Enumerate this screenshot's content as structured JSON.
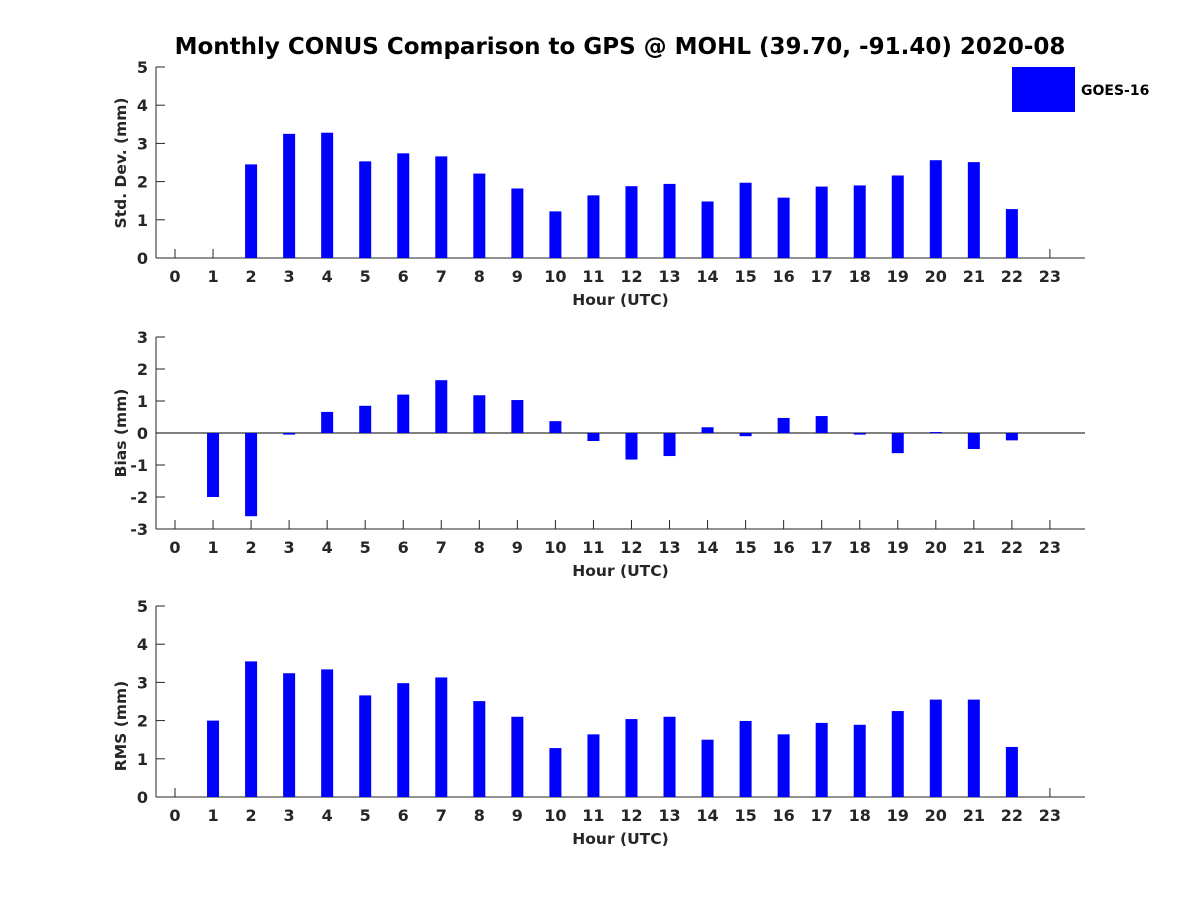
{
  "chart_data": {
    "title": "Monthly CONUS Comparison to GPS @ MOHL (39.70, -91.40) 2020-08",
    "legend": {
      "label": "GOES-16",
      "color": "#0000ff",
      "position": "top-right"
    },
    "panels": [
      {
        "type": "bar",
        "ylabel": "Std. Dev. (mm)",
        "xlabel": "Hour (UTC)",
        "ylim": [
          0,
          5
        ],
        "yticks": [
          "0",
          "1",
          "2",
          "3",
          "4",
          "5"
        ],
        "categories": [
          "0",
          "1",
          "2",
          "3",
          "4",
          "5",
          "6",
          "7",
          "8",
          "9",
          "10",
          "11",
          "12",
          "13",
          "14",
          "15",
          "16",
          "17",
          "18",
          "19",
          "20",
          "21",
          "22",
          "23"
        ],
        "values": [
          null,
          null,
          2.45,
          3.25,
          3.28,
          2.53,
          2.74,
          2.66,
          2.21,
          1.82,
          1.22,
          1.64,
          1.88,
          1.94,
          1.48,
          1.97,
          1.58,
          1.87,
          1.9,
          2.16,
          2.56,
          2.51,
          1.28,
          null
        ]
      },
      {
        "type": "bar",
        "ylabel": "Bias (mm)",
        "xlabel": "Hour (UTC)",
        "ylim": [
          -3,
          3
        ],
        "yticks": [
          "-3",
          "-2",
          "-1",
          "0",
          "1",
          "2",
          "3"
        ],
        "categories": [
          "0",
          "1",
          "2",
          "3",
          "4",
          "5",
          "6",
          "7",
          "8",
          "9",
          "10",
          "11",
          "12",
          "13",
          "14",
          "15",
          "16",
          "17",
          "18",
          "19",
          "20",
          "21",
          "22",
          "23"
        ],
        "values": [
          null,
          -2.0,
          -2.6,
          -0.05,
          0.66,
          0.85,
          1.2,
          1.65,
          1.18,
          1.03,
          0.37,
          -0.25,
          -0.83,
          -0.72,
          0.18,
          -0.1,
          0.47,
          0.53,
          -0.05,
          -0.63,
          0.03,
          -0.5,
          -0.23,
          null
        ]
      },
      {
        "type": "bar",
        "ylabel": "RMS (mm)",
        "xlabel": "Hour (UTC)",
        "ylim": [
          0,
          5
        ],
        "yticks": [
          "0",
          "1",
          "2",
          "3",
          "4",
          "5"
        ],
        "categories": [
          "0",
          "1",
          "2",
          "3",
          "4",
          "5",
          "6",
          "7",
          "8",
          "9",
          "10",
          "11",
          "12",
          "13",
          "14",
          "15",
          "16",
          "17",
          "18",
          "19",
          "20",
          "21",
          "22",
          "23"
        ],
        "values": [
          null,
          2.0,
          3.55,
          3.24,
          3.34,
          2.66,
          2.98,
          3.13,
          2.51,
          2.1,
          1.28,
          1.64,
          2.04,
          2.1,
          1.5,
          1.99,
          1.64,
          1.94,
          1.89,
          2.25,
          2.55,
          2.55,
          1.31,
          null
        ]
      }
    ]
  }
}
